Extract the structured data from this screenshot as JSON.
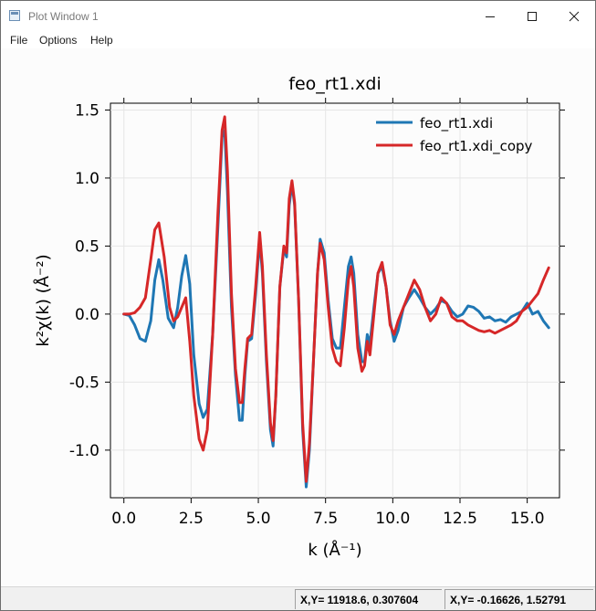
{
  "window": {
    "title": "Plot Window 1",
    "controls": {
      "minimize": "minimize",
      "maximize": "maximize",
      "close": "close"
    }
  },
  "menu": {
    "items": [
      {
        "label": "File"
      },
      {
        "label": "Options"
      },
      {
        "label": "Help"
      }
    ]
  },
  "status": {
    "cursor_data": "X,Y= 11918.6, 0.307604",
    "cursor_plot": "X,Y= -0.16626, 1.52791"
  },
  "chart_data": {
    "type": "line",
    "title": "feo_rt1.xdi",
    "xlabel": "k (Å⁻¹)",
    "ylabel": "k²χ(k) (Å⁻²)",
    "xlim": [
      -0.5,
      16.2
    ],
    "ylim": [
      -1.35,
      1.55
    ],
    "xticks": [
      0.0,
      2.5,
      5.0,
      7.5,
      10.0,
      12.5,
      15.0
    ],
    "xtick_labels": [
      "0.0",
      "2.5",
      "5.0",
      "7.5",
      "10.0",
      "12.5",
      "15.0"
    ],
    "yticks": [
      1.5,
      1.0,
      0.5,
      0.0,
      -0.5,
      -1.0
    ],
    "ytick_labels": [
      "1.5",
      "1.0",
      "0.5",
      "0.0",
      "-0.5",
      "-1.0"
    ],
    "grid": true,
    "legend_position": "top-right",
    "series": [
      {
        "name": "feo_rt1.xdi",
        "color": "#1f77b4",
        "points": [
          [
            0.0,
            0.0
          ],
          [
            0.2,
            -0.01
          ],
          [
            0.4,
            -0.08
          ],
          [
            0.6,
            -0.18
          ],
          [
            0.8,
            -0.2
          ],
          [
            1.0,
            -0.05
          ],
          [
            1.15,
            0.25
          ],
          [
            1.3,
            0.4
          ],
          [
            1.45,
            0.25
          ],
          [
            1.65,
            -0.03
          ],
          [
            1.85,
            -0.1
          ],
          [
            2.0,
            0.05
          ],
          [
            2.15,
            0.28
          ],
          [
            2.3,
            0.43
          ],
          [
            2.45,
            0.22
          ],
          [
            2.6,
            -0.3
          ],
          [
            2.8,
            -0.66
          ],
          [
            2.95,
            -0.76
          ],
          [
            3.1,
            -0.7
          ],
          [
            3.3,
            -0.15
          ],
          [
            3.5,
            0.65
          ],
          [
            3.65,
            1.3
          ],
          [
            3.75,
            1.35
          ],
          [
            3.85,
            0.9
          ],
          [
            4.0,
            0.05
          ],
          [
            4.15,
            -0.45
          ],
          [
            4.3,
            -0.78
          ],
          [
            4.4,
            -0.78
          ],
          [
            4.5,
            -0.45
          ],
          [
            4.6,
            -0.2
          ],
          [
            4.75,
            -0.18
          ],
          [
            4.9,
            0.15
          ],
          [
            5.05,
            0.55
          ],
          [
            5.15,
            0.3
          ],
          [
            5.3,
            -0.35
          ],
          [
            5.45,
            -0.85
          ],
          [
            5.55,
            -0.97
          ],
          [
            5.65,
            -0.6
          ],
          [
            5.8,
            0.2
          ],
          [
            5.95,
            0.48
          ],
          [
            6.05,
            0.42
          ],
          [
            6.15,
            0.8
          ],
          [
            6.25,
            0.96
          ],
          [
            6.35,
            0.8
          ],
          [
            6.5,
            0.1
          ],
          [
            6.65,
            -0.85
          ],
          [
            6.78,
            -1.27
          ],
          [
            6.9,
            -1.0
          ],
          [
            7.05,
            -0.35
          ],
          [
            7.2,
            0.3
          ],
          [
            7.3,
            0.55
          ],
          [
            7.45,
            0.45
          ],
          [
            7.6,
            0.1
          ],
          [
            7.75,
            -0.18
          ],
          [
            7.9,
            -0.25
          ],
          [
            8.05,
            -0.25
          ],
          [
            8.2,
            0.05
          ],
          [
            8.35,
            0.35
          ],
          [
            8.45,
            0.42
          ],
          [
            8.55,
            0.3
          ],
          [
            8.7,
            -0.15
          ],
          [
            8.85,
            -0.35
          ],
          [
            8.95,
            -0.35
          ],
          [
            9.05,
            -0.15
          ],
          [
            9.15,
            -0.22
          ],
          [
            9.3,
            0.05
          ],
          [
            9.45,
            0.3
          ],
          [
            9.6,
            0.35
          ],
          [
            9.75,
            0.2
          ],
          [
            9.9,
            -0.05
          ],
          [
            10.05,
            -0.2
          ],
          [
            10.2,
            -0.12
          ],
          [
            10.4,
            0.05
          ],
          [
            10.6,
            0.12
          ],
          [
            10.8,
            0.18
          ],
          [
            11.0,
            0.12
          ],
          [
            11.2,
            0.05
          ],
          [
            11.4,
            0.0
          ],
          [
            11.6,
            0.04
          ],
          [
            11.8,
            0.1
          ],
          [
            12.0,
            0.08
          ],
          [
            12.2,
            0.02
          ],
          [
            12.4,
            -0.02
          ],
          [
            12.6,
            0.0
          ],
          [
            12.8,
            0.06
          ],
          [
            13.0,
            0.05
          ],
          [
            13.2,
            0.02
          ],
          [
            13.4,
            -0.03
          ],
          [
            13.6,
            -0.02
          ],
          [
            13.8,
            -0.05
          ],
          [
            14.0,
            -0.04
          ],
          [
            14.2,
            -0.06
          ],
          [
            14.4,
            -0.02
          ],
          [
            14.6,
            0.0
          ],
          [
            14.8,
            0.02
          ],
          [
            15.0,
            0.08
          ],
          [
            15.2,
            0.0
          ],
          [
            15.4,
            0.02
          ],
          [
            15.6,
            -0.05
          ],
          [
            15.8,
            -0.1
          ]
        ]
      },
      {
        "name": "feo_rt1.xdi_copy",
        "color": "#d62728",
        "points": [
          [
            0.0,
            0.0
          ],
          [
            0.2,
            0.0
          ],
          [
            0.4,
            0.01
          ],
          [
            0.6,
            0.05
          ],
          [
            0.8,
            0.12
          ],
          [
            1.0,
            0.4
          ],
          [
            1.15,
            0.62
          ],
          [
            1.3,
            0.67
          ],
          [
            1.5,
            0.42
          ],
          [
            1.7,
            0.05
          ],
          [
            1.85,
            -0.05
          ],
          [
            2.0,
            -0.02
          ],
          [
            2.15,
            0.05
          ],
          [
            2.3,
            0.12
          ],
          [
            2.45,
            -0.2
          ],
          [
            2.6,
            -0.6
          ],
          [
            2.8,
            -0.92
          ],
          [
            2.95,
            -1.0
          ],
          [
            3.1,
            -0.85
          ],
          [
            3.3,
            -0.15
          ],
          [
            3.5,
            0.75
          ],
          [
            3.65,
            1.35
          ],
          [
            3.75,
            1.45
          ],
          [
            3.85,
            1.05
          ],
          [
            4.0,
            0.15
          ],
          [
            4.15,
            -0.4
          ],
          [
            4.3,
            -0.65
          ],
          [
            4.4,
            -0.65
          ],
          [
            4.5,
            -0.4
          ],
          [
            4.6,
            -0.18
          ],
          [
            4.75,
            -0.15
          ],
          [
            4.9,
            0.2
          ],
          [
            5.05,
            0.6
          ],
          [
            5.15,
            0.35
          ],
          [
            5.3,
            -0.3
          ],
          [
            5.45,
            -0.8
          ],
          [
            5.55,
            -0.93
          ],
          [
            5.65,
            -0.6
          ],
          [
            5.8,
            0.2
          ],
          [
            5.95,
            0.5
          ],
          [
            6.05,
            0.45
          ],
          [
            6.15,
            0.85
          ],
          [
            6.25,
            0.98
          ],
          [
            6.35,
            0.82
          ],
          [
            6.5,
            0.1
          ],
          [
            6.65,
            -0.8
          ],
          [
            6.78,
            -1.23
          ],
          [
            6.9,
            -0.95
          ],
          [
            7.05,
            -0.35
          ],
          [
            7.2,
            0.3
          ],
          [
            7.3,
            0.52
          ],
          [
            7.45,
            0.4
          ],
          [
            7.6,
            0.05
          ],
          [
            7.75,
            -0.25
          ],
          [
            7.9,
            -0.35
          ],
          [
            8.05,
            -0.38
          ],
          [
            8.2,
            -0.1
          ],
          [
            8.35,
            0.25
          ],
          [
            8.45,
            0.35
          ],
          [
            8.55,
            0.2
          ],
          [
            8.7,
            -0.25
          ],
          [
            8.85,
            -0.42
          ],
          [
            8.95,
            -0.38
          ],
          [
            9.05,
            -0.2
          ],
          [
            9.15,
            -0.3
          ],
          [
            9.3,
            0.0
          ],
          [
            9.45,
            0.3
          ],
          [
            9.6,
            0.38
          ],
          [
            9.75,
            0.2
          ],
          [
            9.9,
            -0.08
          ],
          [
            10.05,
            -0.15
          ],
          [
            10.2,
            -0.05
          ],
          [
            10.4,
            0.05
          ],
          [
            10.6,
            0.15
          ],
          [
            10.8,
            0.25
          ],
          [
            11.0,
            0.18
          ],
          [
            11.2,
            0.05
          ],
          [
            11.4,
            -0.05
          ],
          [
            11.6,
            0.0
          ],
          [
            11.8,
            0.12
          ],
          [
            12.0,
            0.08
          ],
          [
            12.2,
            -0.02
          ],
          [
            12.4,
            -0.05
          ],
          [
            12.6,
            -0.05
          ],
          [
            12.8,
            -0.08
          ],
          [
            13.0,
            -0.1
          ],
          [
            13.2,
            -0.12
          ],
          [
            13.4,
            -0.13
          ],
          [
            13.6,
            -0.12
          ],
          [
            13.8,
            -0.14
          ],
          [
            14.0,
            -0.12
          ],
          [
            14.2,
            -0.1
          ],
          [
            14.4,
            -0.08
          ],
          [
            14.6,
            -0.05
          ],
          [
            14.8,
            0.02
          ],
          [
            15.0,
            0.05
          ],
          [
            15.2,
            0.1
          ],
          [
            15.4,
            0.15
          ],
          [
            15.6,
            0.25
          ],
          [
            15.8,
            0.34
          ]
        ]
      }
    ]
  }
}
